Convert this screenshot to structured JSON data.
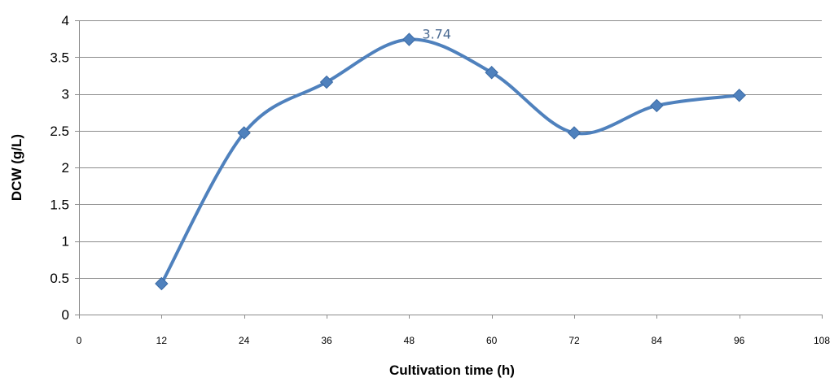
{
  "chart_data": {
    "type": "line",
    "title": "",
    "xlabel": "Cultivation time (h)",
    "ylabel": "DCW (g/L)",
    "xlim": [
      0,
      108
    ],
    "ylim": [
      0,
      4
    ],
    "x_ticks": [
      "0",
      "12",
      "24",
      "36",
      "48",
      "60",
      "72",
      "84",
      "96",
      "108"
    ],
    "y_ticks": [
      "0",
      "0.5",
      "1",
      "1.5",
      "2",
      "2.5",
      "3",
      "3.5",
      "4"
    ],
    "grid": "horizontal",
    "smooth": true,
    "marker": "diamond",
    "series": [
      {
        "x": [
          12,
          24,
          36,
          48,
          60,
          72,
          84,
          96
        ],
        "values": [
          0.42,
          2.47,
          3.16,
          3.74,
          3.29,
          2.47,
          2.84,
          2.98
        ]
      }
    ],
    "annotations": [
      {
        "x": 48,
        "y": 3.74,
        "text": "3.74"
      }
    ],
    "colors": {
      "line": "#4f81bd",
      "marker": "#4f81bd",
      "label": "#4a6a92",
      "grid": "#8c8c8c",
      "axis": "#8c8c8c"
    }
  }
}
